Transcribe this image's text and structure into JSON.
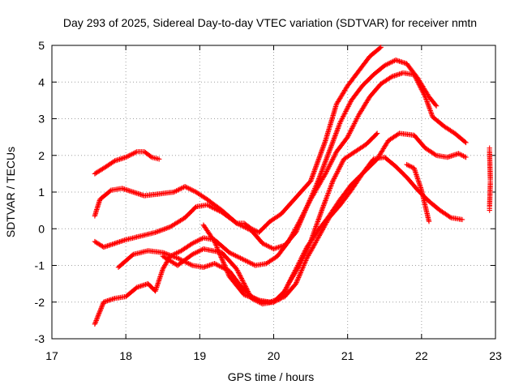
{
  "chart_data": {
    "type": "scatter",
    "title": "Day 293 of 2025, Sidereal Day-to-day VTEC variation (SDTVAR) for receiver nmtn",
    "xlabel": "GPS time / hours",
    "ylabel": "SDTVAR / TECUs",
    "xlim": [
      17,
      23
    ],
    "ylim": [
      -3,
      5
    ],
    "xticks": [
      "17",
      "18",
      "19",
      "20",
      "21",
      "22",
      "23"
    ],
    "yticks": [
      "-3",
      "-2",
      "-1",
      "0",
      "1",
      "2",
      "3",
      "4",
      "5"
    ],
    "grid": true,
    "marker": "+",
    "color": "#ff0000",
    "series": [
      {
        "name": "s1",
        "x": [
          17.58,
          17.7,
          17.85,
          18.0,
          18.15,
          18.25,
          18.35,
          18.45
        ],
        "y": [
          1.5,
          1.65,
          1.85,
          1.95,
          2.1,
          2.1,
          1.95,
          1.9
        ]
      },
      {
        "name": "s2",
        "x": [
          17.58,
          17.65,
          17.8,
          17.95,
          18.1,
          18.25,
          18.45,
          18.65,
          18.8,
          18.95,
          19.1,
          19.3,
          19.5,
          19.6,
          19.7,
          19.8,
          19.95,
          20.1,
          20.3,
          20.5,
          20.7,
          20.85,
          21.0,
          21.15,
          21.3,
          21.45
        ],
        "y": [
          0.35,
          0.8,
          1.05,
          1.1,
          1.0,
          0.9,
          0.95,
          1.0,
          1.15,
          1.0,
          0.8,
          0.5,
          0.15,
          0.15,
          0.0,
          -0.1,
          0.2,
          0.4,
          0.85,
          1.3,
          2.4,
          3.4,
          3.9,
          4.3,
          4.7,
          4.95
        ]
      },
      {
        "name": "s3",
        "x": [
          17.58,
          17.7,
          17.85,
          18.0,
          18.2,
          18.4,
          18.6,
          18.8,
          18.95,
          19.1,
          19.3,
          19.5,
          19.7,
          19.85,
          20.0,
          20.15,
          20.3,
          20.45,
          20.6,
          20.75,
          20.9,
          21.05,
          21.2,
          21.35,
          21.5,
          21.65,
          21.8,
          21.95,
          22.1,
          22.2
        ],
        "y": [
          -0.35,
          -0.5,
          -0.4,
          -0.3,
          -0.2,
          -0.1,
          0.05,
          0.3,
          0.6,
          0.65,
          0.45,
          0.15,
          -0.05,
          -0.4,
          -0.55,
          -0.45,
          -0.1,
          0.6,
          1.3,
          2.1,
          2.9,
          3.5,
          3.9,
          4.2,
          4.45,
          4.6,
          4.5,
          4.1,
          3.6,
          3.35
        ]
      },
      {
        "name": "s4",
        "x": [
          17.58,
          17.7,
          17.85,
          18.0,
          18.15,
          18.3,
          18.4,
          18.5,
          18.6,
          18.75,
          18.9,
          19.05,
          19.2,
          19.4,
          19.6,
          19.75,
          19.9,
          20.05,
          20.2,
          20.35,
          20.5,
          20.7,
          20.85,
          21.0,
          21.15,
          21.3,
          21.45,
          21.6,
          21.75,
          21.9,
          22.05,
          22.15,
          22.3,
          22.45,
          22.6
        ],
        "y": [
          -2.6,
          -2.0,
          -1.9,
          -1.85,
          -1.6,
          -1.5,
          -1.7,
          -1.1,
          -0.75,
          -0.6,
          -0.4,
          -0.25,
          -0.3,
          -0.65,
          -0.85,
          -1.0,
          -0.95,
          -0.75,
          -0.35,
          0.2,
          0.8,
          1.5,
          2.1,
          2.5,
          3.1,
          3.6,
          3.95,
          4.15,
          4.25,
          4.2,
          3.6,
          3.05,
          2.8,
          2.6,
          2.35
        ]
      },
      {
        "name": "s5",
        "x": [
          17.9,
          18.1,
          18.3,
          18.5,
          18.7,
          18.9,
          19.05,
          19.2,
          19.4,
          19.55,
          19.7,
          19.85,
          20.0,
          20.1,
          20.2,
          20.35,
          20.5,
          20.65,
          20.8,
          20.95,
          21.1,
          21.25,
          21.4
        ],
        "y": [
          -1.05,
          -0.7,
          -0.6,
          -0.65,
          -0.8,
          -1.0,
          -1.05,
          -0.95,
          -1.15,
          -1.55,
          -1.85,
          -2.0,
          -2.0,
          -1.9,
          -1.5,
          -1.0,
          -0.35,
          0.5,
          1.3,
          1.9,
          2.1,
          2.3,
          2.6
        ]
      },
      {
        "name": "s6",
        "x": [
          18.5,
          18.7,
          18.9,
          19.05,
          19.3,
          19.5,
          19.7,
          19.85,
          20.0,
          20.15,
          20.3,
          20.45,
          20.6,
          20.75,
          20.9,
          21.05,
          21.2,
          21.4,
          21.55,
          21.7,
          21.9,
          22.05,
          22.2,
          22.35,
          22.5,
          22.6
        ],
        "y": [
          -0.75,
          -1.0,
          -0.7,
          -0.55,
          -0.65,
          -1.1,
          -1.9,
          -2.05,
          -2.0,
          -1.7,
          -1.1,
          -0.5,
          -0.05,
          0.35,
          0.8,
          1.2,
          1.5,
          1.9,
          2.4,
          2.6,
          2.55,
          2.2,
          2.0,
          1.95,
          2.05,
          1.95
        ]
      },
      {
        "name": "s7",
        "x": [
          19.05,
          19.2,
          19.4,
          19.6,
          19.8,
          19.95,
          20.15,
          20.3,
          20.45,
          20.6,
          20.75,
          20.9,
          21.05,
          21.2,
          21.35,
          21.5,
          21.65,
          21.8,
          21.95,
          22.1,
          22.25,
          22.4,
          22.55
        ],
        "y": [
          0.1,
          -0.35,
          -1.3,
          -1.8,
          -1.95,
          -2.0,
          -1.85,
          -1.5,
          -0.8,
          -0.25,
          0.3,
          0.65,
          1.05,
          1.5,
          1.9,
          1.95,
          1.7,
          1.4,
          1.05,
          0.75,
          0.5,
          0.3,
          0.25
        ]
      },
      {
        "name": "s8",
        "x": [
          21.8,
          21.9,
          22.0,
          22.1
        ],
        "y": [
          1.75,
          1.65,
          1.05,
          0.2
        ]
      },
      {
        "name": "s9",
        "x": [
          22.92,
          22.92,
          22.93,
          22.93,
          22.92,
          22.92
        ],
        "y": [
          2.2,
          2.1,
          1.35,
          1.25,
          0.6,
          0.5
        ]
      }
    ]
  }
}
